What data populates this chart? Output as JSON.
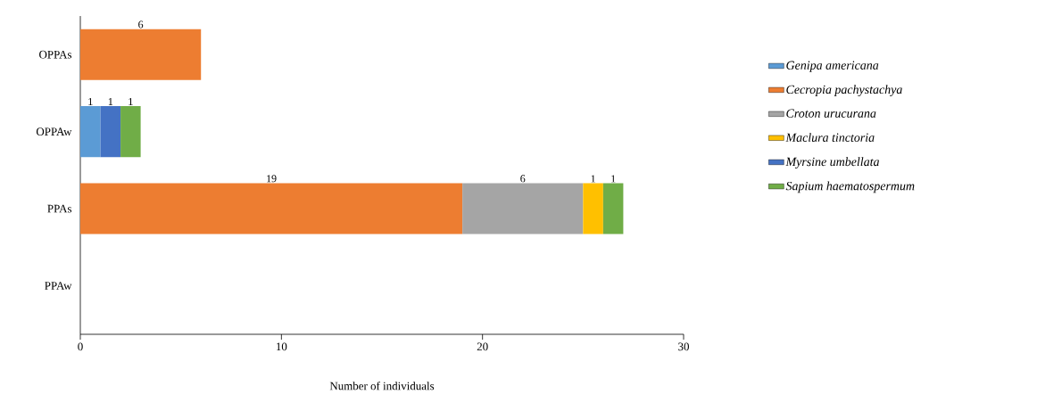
{
  "chart_data": {
    "type": "bar",
    "orientation": "horizontal",
    "stacked": true,
    "categories": [
      "OPPAs",
      "OPPAw",
      "PPAs",
      "PPAw"
    ],
    "series": [
      {
        "name": "Genipa americana",
        "color": "#5b9bd5",
        "values": [
          null,
          1,
          null,
          null
        ]
      },
      {
        "name": "Cecropia pachystachya",
        "color": "#ed7d31",
        "values": [
          6,
          null,
          19,
          null
        ]
      },
      {
        "name": "Croton urucurana",
        "color": "#a5a5a5",
        "values": [
          null,
          null,
          6,
          null
        ]
      },
      {
        "name": "Maclura tinctoria",
        "color": "#ffc000",
        "values": [
          null,
          null,
          1,
          null
        ]
      },
      {
        "name": "Myrsine umbellata",
        "color": "#4472c4",
        "values": [
          null,
          1,
          null,
          null
        ]
      },
      {
        "name": "Sapium haematospermum",
        "color": "#70ad47",
        "values": [
          null,
          1,
          1,
          null
        ]
      }
    ],
    "xlim": [
      0,
      30
    ],
    "xticks": [
      0,
      10,
      20,
      30
    ],
    "xlabel": "Number of individuals",
    "data_labels": true,
    "legend": "right",
    "grid": false
  }
}
